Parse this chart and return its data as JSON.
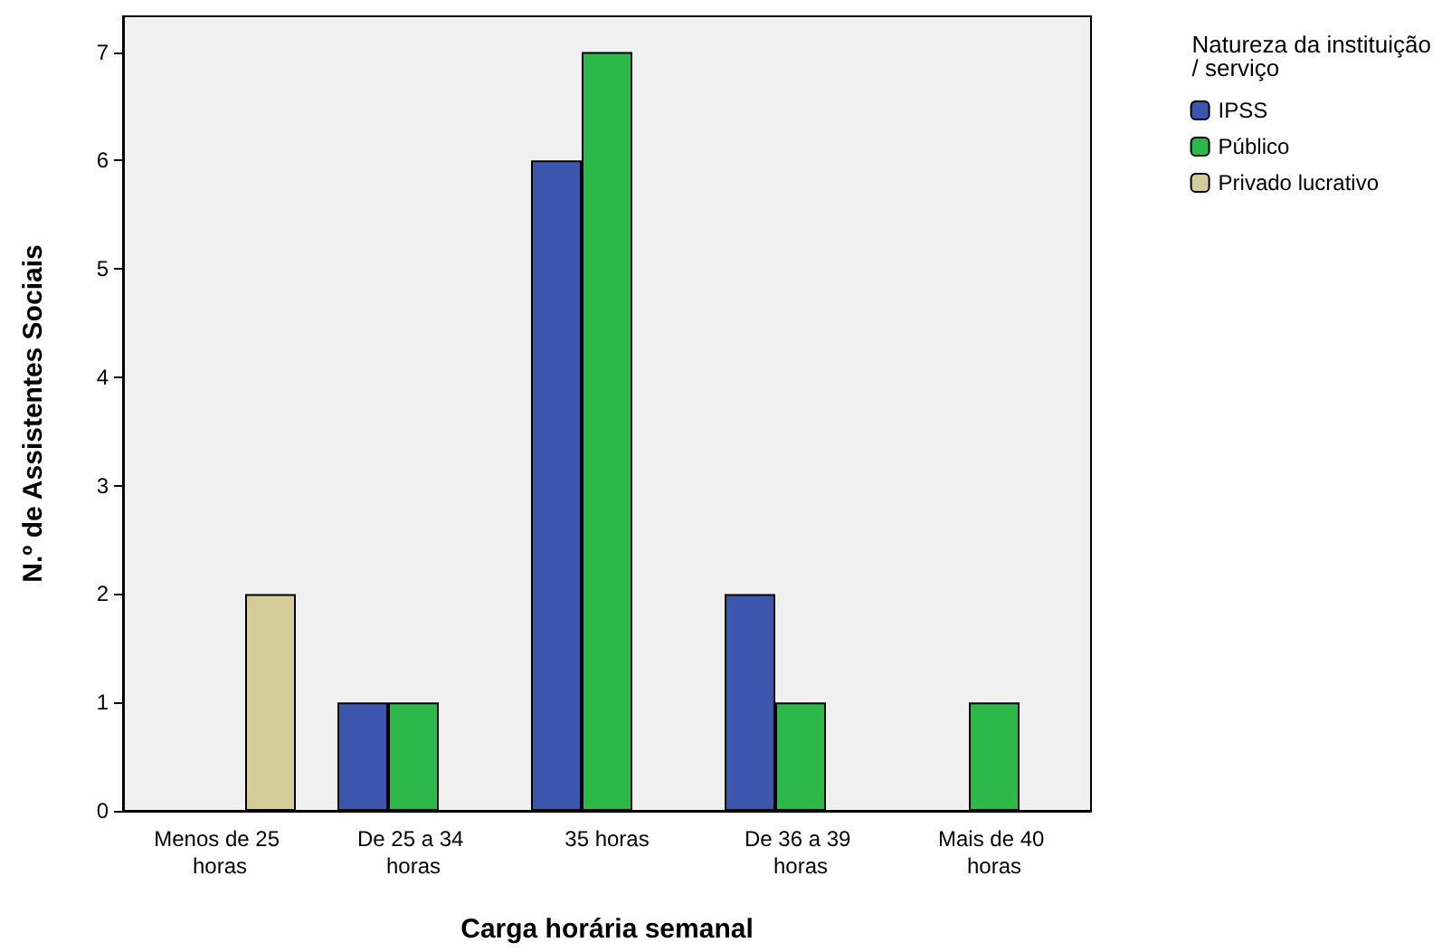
{
  "chart_data": {
    "type": "bar",
    "xlabel": "Carga horária semanal",
    "ylabel": "N.º de Assistentes Sociais",
    "legend_title": "Natureza da instituição/ serviço",
    "categories": [
      "Menos de 25 horas",
      "De 25 a 34 horas",
      "35 horas",
      "De 36 a 39 horas",
      "Mais de 40 horas"
    ],
    "series": [
      {
        "name": "IPSS",
        "color": "#3d56ad",
        "values": [
          null,
          1,
          6,
          2,
          null
        ]
      },
      {
        "name": "Público",
        "color": "#2db84a",
        "values": [
          null,
          1,
          7,
          1,
          1
        ]
      },
      {
        "name": "Privado lucrativo",
        "color": "#d4cd99",
        "values": [
          2,
          null,
          null,
          null,
          null
        ]
      }
    ],
    "ylim": [
      0,
      7.33
    ],
    "yticks": [
      0,
      1,
      2,
      3,
      4,
      5,
      6,
      7
    ],
    "grid": false,
    "legend": "top right"
  }
}
